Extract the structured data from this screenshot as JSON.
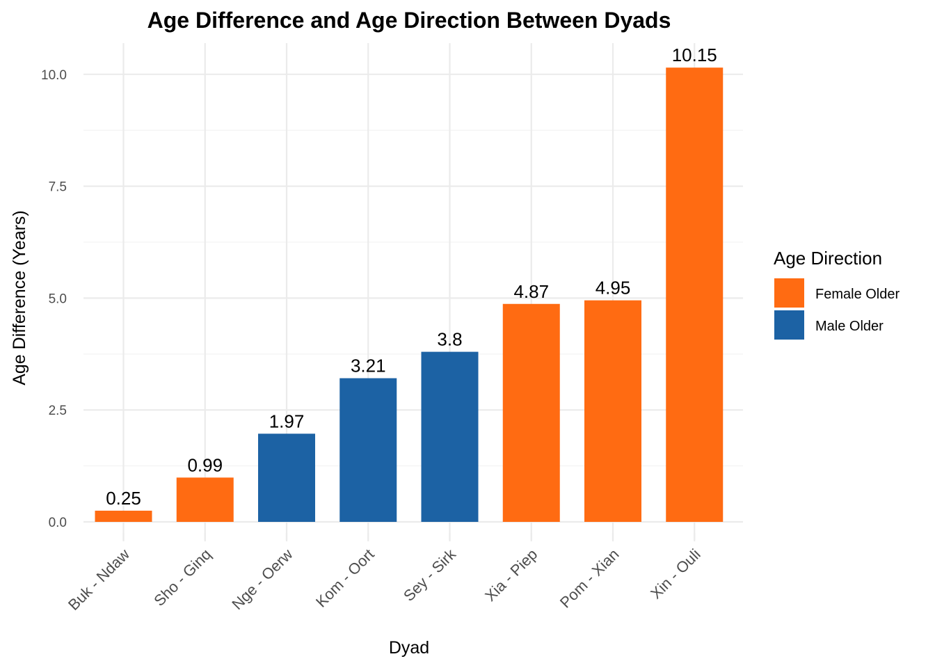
{
  "chart_data": {
    "type": "bar",
    "title": "Age Difference and Age Direction Between Dyads",
    "xlabel": "Dyad",
    "ylabel": "Age Difference (Years)",
    "ylim": [
      0,
      10.5
    ],
    "yticks": [
      0,
      2.5,
      5,
      7.5,
      10
    ],
    "ytick_labels": [
      "0.0",
      "2.5",
      "5.0",
      "7.5",
      "10.0"
    ],
    "grid": true,
    "legend": {
      "title": "Age Direction",
      "placement": "right",
      "entries": [
        {
          "label": "Female Older",
          "color": "#FF6B12"
        },
        {
          "label": "Male Older",
          "color": "#1C62A4"
        }
      ]
    },
    "categories": [
      "Buk - Ndaw",
      "Sho - Ginq",
      "Nge - Oerw",
      "Kom - Oort",
      "Sey - Sirk",
      "Xia - Piep",
      "Pom - Xian",
      "Xin - Ouli"
    ],
    "values": [
      0.25,
      0.99,
      1.97,
      3.21,
      3.8,
      4.87,
      4.95,
      10.15
    ],
    "value_labels": [
      "0.25",
      "0.99",
      "1.97",
      "3.21",
      "3.8",
      "4.87",
      "4.95",
      "10.15"
    ],
    "groups": [
      "Female Older",
      "Female Older",
      "Male Older",
      "Male Older",
      "Male Older",
      "Female Older",
      "Female Older",
      "Female Older"
    ]
  }
}
